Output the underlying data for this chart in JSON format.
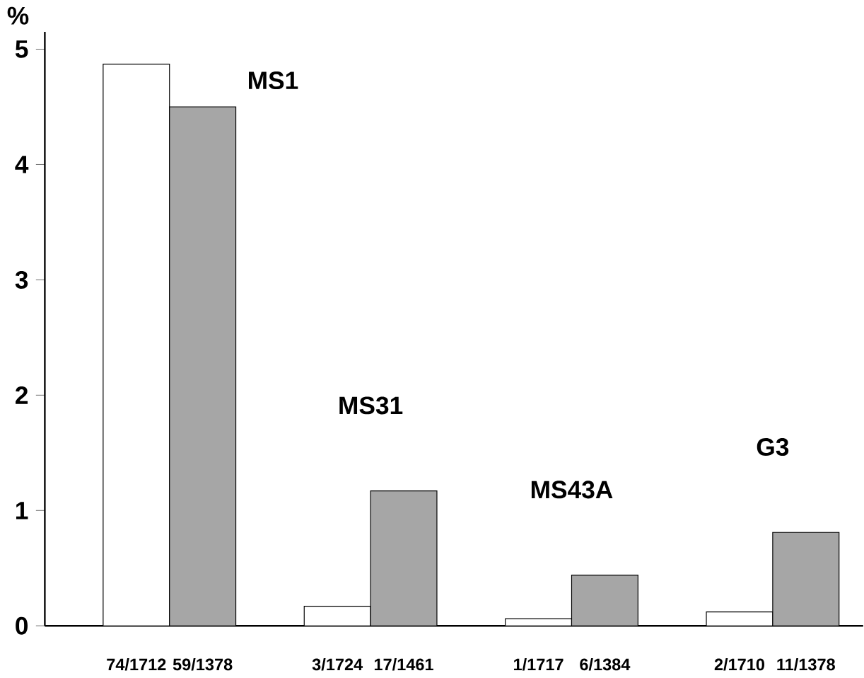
{
  "chart_data": {
    "type": "bar",
    "ylabel": "%",
    "categories": [
      null,
      null,
      null,
      null
    ],
    "annotations": [
      "MS1",
      "MS31",
      "MS43A",
      "G3"
    ],
    "series": [
      {
        "color": "#ffffff",
        "values": [
          4.87,
          0.17,
          0.06,
          0.12
        ],
        "value_labels": [
          "74/1712",
          "3/1724",
          "1/1717",
          "2/1710"
        ]
      },
      {
        "color": "#a6a6a6",
        "values": [
          4.5,
          1.17,
          0.44,
          0.81
        ],
        "value_labels": [
          "59/1378",
          "17/1461",
          "6/1384",
          "11/1378"
        ]
      }
    ],
    "ylim": [
      0,
      5.15
    ],
    "yticks": [
      0,
      1,
      2,
      3,
      4,
      5
    ],
    "grid": false
  }
}
